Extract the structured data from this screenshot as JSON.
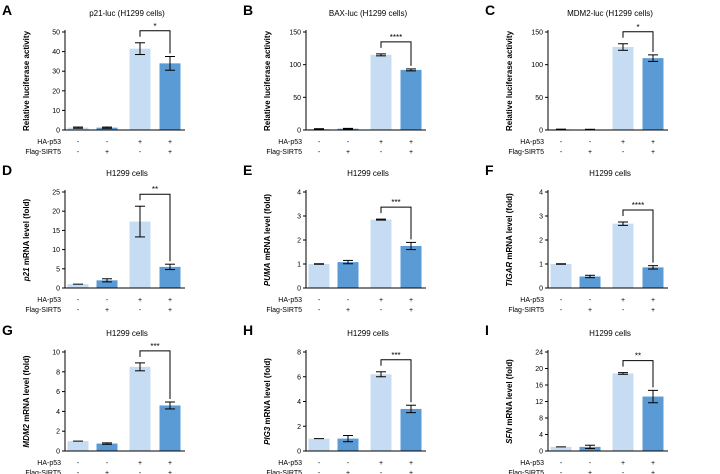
{
  "colors": {
    "light_bar": "#c6dcf2",
    "dark_bar": "#5b9bd5",
    "axis": "#000000"
  },
  "row_labels": [
    "HA-p53",
    "Flag-SIRT5"
  ],
  "conditions": [
    [
      "-",
      "-",
      "+",
      "+"
    ],
    [
      "-",
      "+",
      "-",
      "+"
    ]
  ],
  "chart_data": [
    {
      "type": "bar",
      "panel": "A",
      "title": "p21-luc (H1299 cells)",
      "ylabel": "Relative luciferase activity",
      "ylabel_italic_part": "",
      "ylim": [
        0,
        50
      ],
      "yticks": [
        0,
        10,
        20,
        30,
        40,
        50
      ],
      "values": [
        1.2,
        1.2,
        41.5,
        34.0
      ],
      "errors": [
        0.3,
        0.3,
        3.0,
        3.5
      ],
      "significance": {
        "from": 2,
        "to": 3,
        "label": "*"
      }
    },
    {
      "type": "bar",
      "panel": "B",
      "title": "BAX-luc (H1299 cells)",
      "ylabel": "Relative luciferase activity",
      "ylabel_italic_part": "",
      "ylim": [
        0,
        150
      ],
      "yticks": [
        0,
        50,
        100,
        150
      ],
      "values": [
        1.5,
        2.0,
        115.0,
        92.0
      ],
      "errors": [
        0.5,
        0.5,
        1.5,
        1.5
      ],
      "significance": {
        "from": 2,
        "to": 3,
        "label": "****"
      }
    },
    {
      "type": "bar",
      "panel": "C",
      "title": "MDM2-luc (H1299 cells)",
      "ylabel": "Relative luciferase activity",
      "ylabel_italic_part": "",
      "ylim": [
        0,
        150
      ],
      "yticks": [
        0,
        50,
        100,
        150
      ],
      "values": [
        1.0,
        0.8,
        127.0,
        110.0
      ],
      "errors": [
        0.3,
        0.3,
        5.0,
        5.0
      ],
      "significance": {
        "from": 2,
        "to": 3,
        "label": "*"
      }
    },
    {
      "type": "bar",
      "panel": "D",
      "title": "H1299 cells",
      "ylabel": " mRNA level (fold)",
      "ylabel_italic_part": "p21",
      "ylim": [
        0,
        25
      ],
      "yticks": [
        0,
        5,
        10,
        15,
        20,
        25
      ],
      "values": [
        1.0,
        2.0,
        17.3,
        5.5
      ],
      "errors": [
        0.0,
        0.4,
        4.0,
        0.7
      ],
      "significance": {
        "from": 2,
        "to": 3,
        "label": "**"
      }
    },
    {
      "type": "bar",
      "panel": "E",
      "title": "H1299 cells",
      "ylabel": " mRNA level (fold)",
      "ylabel_italic_part": "PUMA",
      "ylim": [
        0,
        4
      ],
      "yticks": [
        0,
        1,
        2,
        3,
        4
      ],
      "values": [
        1.0,
        1.08,
        2.85,
        1.75
      ],
      "errors": [
        0.01,
        0.07,
        0.02,
        0.15
      ],
      "significance": {
        "from": 2,
        "to": 3,
        "label": "***"
      }
    },
    {
      "type": "bar",
      "panel": "F",
      "title": "H1299 cells",
      "ylabel": " mRNA level (fold)",
      "ylabel_italic_part": "TIGAR",
      "ylim": [
        0,
        4
      ],
      "yticks": [
        0,
        1,
        2,
        3,
        4
      ],
      "values": [
        1.0,
        0.48,
        2.68,
        0.86
      ],
      "errors": [
        0.01,
        0.05,
        0.07,
        0.07
      ],
      "significance": {
        "from": 2,
        "to": 3,
        "label": "****"
      }
    },
    {
      "type": "bar",
      "panel": "G",
      "title": "H1299 cells",
      "ylabel": " mRNA level (fold)",
      "ylabel_italic_part": "MDM2",
      "ylim": [
        0,
        10
      ],
      "yticks": [
        0,
        2,
        4,
        6,
        8,
        10
      ],
      "values": [
        1.0,
        0.75,
        8.5,
        4.6
      ],
      "errors": [
        0.0,
        0.07,
        0.4,
        0.35
      ],
      "significance": {
        "from": 2,
        "to": 3,
        "label": "***"
      }
    },
    {
      "type": "bar",
      "panel": "H",
      "title": "H1299 cells",
      "ylabel": " mRNA level (fold)",
      "ylabel_italic_part": "PIG3",
      "ylim": [
        0,
        8
      ],
      "yticks": [
        0,
        2,
        4,
        6,
        8
      ],
      "values": [
        1.0,
        1.0,
        6.2,
        3.4
      ],
      "errors": [
        0.0,
        0.25,
        0.2,
        0.3
      ],
      "significance": {
        "from": 2,
        "to": 3,
        "label": "***"
      }
    },
    {
      "type": "bar",
      "panel": "I",
      "title": "H1299 cells",
      "ylabel": " mRNA level (fold)",
      "ylabel_italic_part": "SFN",
      "ylim": [
        0,
        24
      ],
      "yticks": [
        0,
        4,
        8,
        12,
        16,
        20,
        24
      ],
      "values": [
        1.0,
        1.0,
        18.8,
        13.2
      ],
      "errors": [
        0.0,
        0.4,
        0.2,
        1.5
      ],
      "significance": {
        "from": 2,
        "to": 3,
        "label": "**"
      }
    }
  ]
}
